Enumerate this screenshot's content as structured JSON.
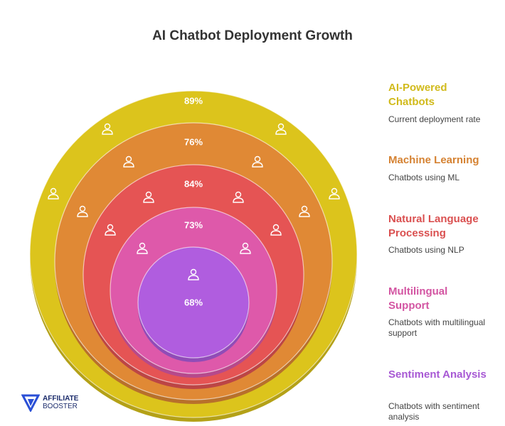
{
  "title": "AI Chatbot Deployment Growth",
  "rings": [
    {
      "label": "AI-Powered Chatbots",
      "description": "Current deployment rate",
      "value": "89%",
      "color": "#dcc41c"
    },
    {
      "label": "Machine Learning",
      "description": "Chatbots using ML",
      "value": "76%",
      "color": "#e08935"
    },
    {
      "label": "Natural Language Processing",
      "description": "Chatbots using NLP",
      "value": "84%",
      "color": "#e55454"
    },
    {
      "label": "Multilingual Support",
      "description": "Chatbots with multilingual support",
      "value": "73%",
      "color": "#de59aa"
    },
    {
      "label": "Sentiment Analysis",
      "description": "Chatbots with sentiment analysis",
      "value": "68%",
      "color": "#b05ddf"
    }
  ],
  "logo": {
    "line1": "AFFILIATE",
    "line2": "BOOSTER"
  }
}
